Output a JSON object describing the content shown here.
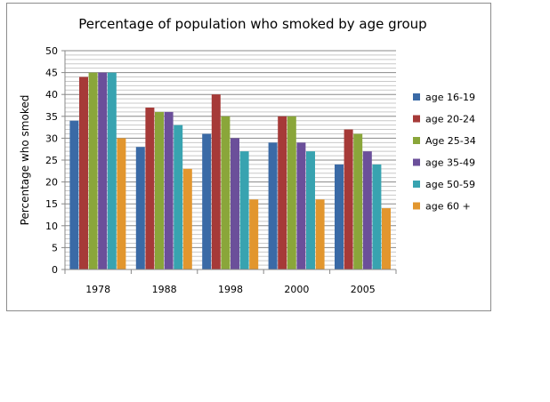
{
  "chart_data": {
    "type": "bar",
    "title": "Percentage of population who smoked by age group",
    "xlabel": "",
    "ylabel": "Percentage who smoked",
    "ylim": [
      0,
      50
    ],
    "yticks": [
      0,
      5,
      10,
      15,
      20,
      25,
      30,
      35,
      40,
      45,
      50
    ],
    "grid": true,
    "legend_position": "right",
    "categories": [
      "1978",
      "1988",
      "1998",
      "2000",
      "2005"
    ],
    "series": [
      {
        "name": "age 16-19",
        "color": "#3a6aa6",
        "values": [
          34,
          28,
          31,
          29,
          24
        ]
      },
      {
        "name": "age 20-24",
        "color": "#a63a38",
        "values": [
          44,
          37,
          40,
          35,
          32
        ]
      },
      {
        "name": "Age 25-34",
        "color": "#8aa63a",
        "values": [
          45,
          36,
          35,
          35,
          31
        ]
      },
      {
        "name": "age 35-49",
        "color": "#6b4f9a",
        "values": [
          45,
          36,
          30,
          29,
          27
        ]
      },
      {
        "name": "age 50-59",
        "color": "#38a3b0",
        "values": [
          45,
          33,
          27,
          27,
          24
        ]
      },
      {
        "name": "age 60 +",
        "color": "#e2962e",
        "values": [
          30,
          23,
          16,
          16,
          14
        ]
      }
    ]
  }
}
